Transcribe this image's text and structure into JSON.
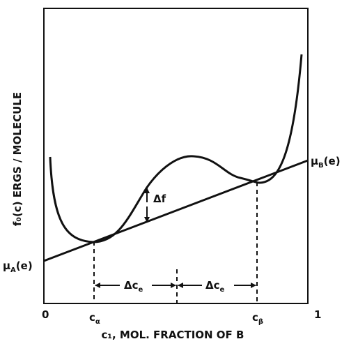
{
  "diagram": {
    "y_axis_label": "f₀(c) ERGS / MOLECULE",
    "x_axis_label": "c₁, MOL. FRACTION OF B",
    "x_tick_start": "0",
    "x_tick_end": "1",
    "c_alpha": {
      "base": "c",
      "sub": "α"
    },
    "c_beta": {
      "base": "c",
      "sub": "β"
    },
    "mu_A": {
      "base": "μ",
      "sub": "A",
      "suffix": "(e)"
    },
    "mu_B": {
      "base": "μ",
      "sub": "B",
      "suffix": "(e)"
    },
    "delta_f": "Δf",
    "delta_c_left": {
      "base": "Δc",
      "sub": "e"
    },
    "delta_c_right": {
      "base": "Δc",
      "sub": "e"
    },
    "colors": {
      "ink": "#111111",
      "background": "#ffffff"
    }
  }
}
